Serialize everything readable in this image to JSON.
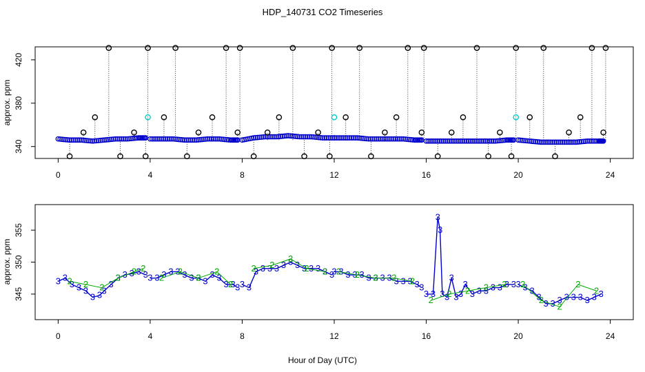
{
  "chart_data": [
    {
      "type": "scatter",
      "title": "HDP_140731  CO2 Timeseries",
      "xlabel": "",
      "ylabel": "approx. ppm",
      "xlim": [
        -1,
        25
      ],
      "ylim": [
        329,
        432
      ],
      "xticks": [
        "0",
        "4",
        "8",
        "12",
        "16",
        "20",
        "24"
      ],
      "yticks": [
        "340",
        "380",
        "420"
      ],
      "series": [
        {
          "name": "blue",
          "color": "#0000cc",
          "marker": "o",
          "segments": [
            {
              "x": [
                0.0,
                0.5,
                1.0,
                1.5,
                2.0,
                2.5,
                3.0,
                3.5,
                3.8
              ],
              "y": [
                347,
                346,
                346,
                345,
                346,
                347,
                347,
                348,
                348
              ]
            },
            {
              "x": [
                4.0,
                4.5,
                5.0,
                5.5,
                6.0,
                6.5,
                7.0,
                7.5,
                7.8
              ],
              "y": [
                347,
                347,
                347,
                346,
                346,
                347,
                347,
                346,
                346
              ]
            },
            {
              "x": [
                8.0,
                8.5,
                9.0,
                9.5,
                10.0,
                10.5,
                11.0,
                11.5,
                12.0
              ],
              "y": [
                346,
                348,
                349,
                349,
                350,
                349,
                349,
                348,
                348
              ]
            },
            {
              "x": [
                12.0,
                12.5,
                13.0,
                13.5,
                14.0,
                14.5,
                15.0,
                15.5,
                15.8
              ],
              "y": [
                348,
                348,
                348,
                347,
                347,
                347,
                347,
                346,
                346
              ]
            },
            {
              "x": [
                16.0,
                16.5,
                17.0,
                17.5,
                18.0,
                18.5,
                19.0,
                19.5,
                19.8
              ],
              "y": [
                345,
                345,
                345,
                345,
                345,
                345,
                345,
                346,
                346
              ]
            },
            {
              "x": [
                20.0,
                20.5,
                21.0,
                21.5,
                22.0,
                22.5,
                23.0,
                23.5,
                23.7
              ],
              "y": [
                346,
                345,
                344,
                344,
                344,
                344,
                345,
                345,
                345
              ]
            }
          ]
        },
        {
          "name": "cyan",
          "color": "#00cccc",
          "marker": "o",
          "x": [
            3.9,
            12.0,
            19.9
          ],
          "y": [
            367,
            367,
            367
          ]
        },
        {
          "name": "black",
          "color": "#000000",
          "marker": "o",
          "x": [
            0.5,
            1.1,
            1.6,
            2.2,
            2.7,
            3.3,
            3.8,
            3.9,
            4.6,
            5.1,
            5.6,
            6.1,
            6.7,
            7.3,
            7.8,
            7.9,
            8.5,
            9.1,
            9.6,
            10.2,
            10.7,
            11.3,
            11.8,
            11.9,
            12.5,
            13.1,
            13.6,
            14.2,
            14.7,
            15.2,
            15.8,
            15.9,
            16.5,
            17.1,
            17.6,
            18.2,
            18.7,
            19.2,
            19.7,
            19.9,
            20.5,
            21.1,
            21.6,
            22.2,
            22.7,
            23.2,
            23.7,
            23.8
          ],
          "y": [
            331,
            353,
            367,
            431,
            331,
            353,
            331,
            431,
            367,
            431,
            331,
            353,
            367,
            431,
            353,
            431,
            331,
            353,
            367,
            431,
            331,
            353,
            331,
            431,
            367,
            431,
            331,
            353,
            367,
            431,
            353,
            431,
            331,
            353,
            367,
            431,
            331,
            353,
            331,
            431,
            367,
            431,
            331,
            353,
            367,
            431,
            353,
            431
          ]
        }
      ]
    },
    {
      "type": "line",
      "title": "",
      "xlabel": "Hour of Day (UTC)",
      "ylabel": "approx. ppm",
      "xlim": [
        -1,
        25
      ],
      "ylim": [
        341,
        359
      ],
      "xticks": [
        "0",
        "4",
        "8",
        "12",
        "16",
        "20",
        "24"
      ],
      "yticks": [
        "345",
        "350",
        "355"
      ],
      "series": [
        {
          "name": "3",
          "color": "#0000cc",
          "marker": "3",
          "segments": [
            {
              "x": [
                0.0,
                0.3,
                0.6,
                0.9,
                1.2,
                1.5,
                1.8,
                2.0,
                2.3,
                2.6,
                2.9,
                3.2,
                3.5,
                3.8
              ],
              "y": [
                347.0,
                347.5,
                346.5,
                346.0,
                345.5,
                344.5,
                344.8,
                345.5,
                346.5,
                347.5,
                348.0,
                348.2,
                348.5,
                348.0
              ]
            },
            {
              "x": [
                4.0,
                4.3,
                4.6,
                4.9,
                5.2,
                5.5,
                5.8,
                6.1,
                6.4,
                6.7,
                7.0,
                7.3,
                7.6,
                7.8
              ],
              "y": [
                347.5,
                347.5,
                348.0,
                348.5,
                348.5,
                348.0,
                347.5,
                347.5,
                347.0,
                348.0,
                347.5,
                346.5,
                346.5,
                346.0
              ]
            },
            {
              "x": [
                8.0,
                8.3,
                8.6,
                8.9,
                9.2,
                9.5,
                9.8,
                10.1,
                10.4,
                10.7,
                11.0,
                11.3,
                11.6,
                11.9
              ],
              "y": [
                346.5,
                346.0,
                348.5,
                349.0,
                349.0,
                349.0,
                349.5,
                350.0,
                349.5,
                349.0,
                349.0,
                349.0,
                348.5,
                348.0
              ]
            },
            {
              "x": [
                12.0,
                12.3,
                12.6,
                12.9,
                13.2,
                13.5,
                13.8,
                14.1,
                14.4,
                14.7,
                15.0,
                15.3,
                15.6,
                15.8
              ],
              "y": [
                348.5,
                348.5,
                348.0,
                348.0,
                348.0,
                347.5,
                347.5,
                347.5,
                347.5,
                347.0,
                347.0,
                347.0,
                346.5,
                346.0
              ]
            },
            {
              "x": [
                16.0,
                16.3,
                16.5,
                16.6,
                16.7,
                16.9,
                17.1,
                17.3,
                17.5,
                17.7,
                18.0,
                18.3,
                18.6,
                18.9,
                19.2,
                19.5,
                19.8
              ],
              "y": [
                345.0,
                345.0,
                357.0,
                355.0,
                345.0,
                344.5,
                347.5,
                344.5,
                345.0,
                346.5,
                345.0,
                345.5,
                345.5,
                346.0,
                346.0,
                346.5,
                346.5
              ]
            },
            {
              "x": [
                20.0,
                20.3,
                20.6,
                20.9,
                21.2,
                21.5,
                21.8,
                22.1,
                22.4,
                22.7,
                23.0,
                23.3,
                23.6
              ],
              "y": [
                346.5,
                346.0,
                345.5,
                344.5,
                343.5,
                343.5,
                344.0,
                344.5,
                344.5,
                344.5,
                344.0,
                344.5,
                345.0
              ]
            }
          ]
        },
        {
          "name": "2",
          "color": "#00aa00",
          "marker": "2",
          "segments": [
            {
              "x": [
                0.5,
                1.2,
                1.9,
                2.6,
                3.3,
                3.7
              ],
              "y": [
                347.0,
                346.5,
                346.0,
                347.5,
                348.5,
                349.0
              ]
            },
            {
              "x": [
                4.5,
                5.3,
                6.1,
                6.9,
                7.5
              ],
              "y": [
                347.5,
                348.5,
                347.5,
                348.5,
                346.5
              ]
            },
            {
              "x": [
                8.5,
                9.3,
                10.1,
                10.8,
                11.6
              ],
              "y": [
                349.0,
                349.5,
                350.5,
                349.0,
                348.5
              ]
            },
            {
              "x": [
                12.2,
                13.0,
                13.8,
                14.6,
                15.4
              ],
              "y": [
                348.5,
                348.0,
                347.5,
                347.5,
                347.0
              ]
            },
            {
              "x": [
                16.2,
                17.0,
                17.8,
                18.6,
                19.4
              ],
              "y": [
                344.0,
                345.0,
                345.5,
                346.0,
                346.5
              ]
            },
            {
              "x": [
                20.2,
                21.0,
                21.8,
                22.6,
                23.4
              ],
              "y": [
                346.5,
                344.0,
                343.0,
                346.5,
                345.5
              ]
            }
          ]
        }
      ]
    }
  ]
}
